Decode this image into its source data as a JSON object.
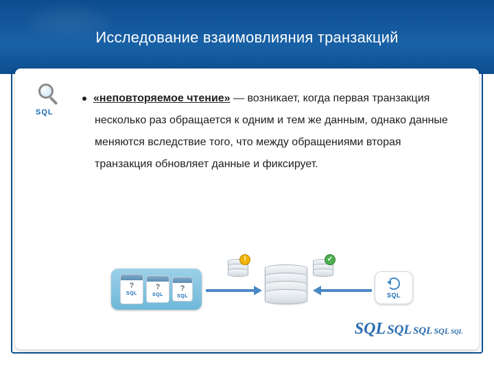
{
  "colors": {
    "header_bg_top": "#0d4d8f",
    "header_bg_mid": "#1961a6",
    "arrow": "#4a88c4",
    "sql_text": "#1668b2",
    "body_text": "#202020",
    "box_left_top": "#9dd0e8",
    "box_left_bottom": "#6eb8d9"
  },
  "title": "Исследование взаимовлияния транзакций",
  "icon": {
    "label": "SQL"
  },
  "body": {
    "term": "«неповторяемое чтение»",
    "rest": " — возникает, когда первая транзакция несколько раз обращается к одним и тем же данным, однако данные меняются вследствие того, что между обращениями вторая транзакция обновляет данные и фиксирует."
  },
  "diagram": {
    "left_cards": [
      {
        "mark": "?",
        "label": "SQL"
      },
      {
        "mark": "?",
        "label": "SQL"
      },
      {
        "mark": "?",
        "label": "SQL"
      }
    ],
    "warn_symbol": "!",
    "check_symbol": "✓",
    "right_label": "SQL"
  },
  "cascade": [
    "SQL",
    "SQL",
    "SQL",
    "SQL",
    "SQL"
  ]
}
